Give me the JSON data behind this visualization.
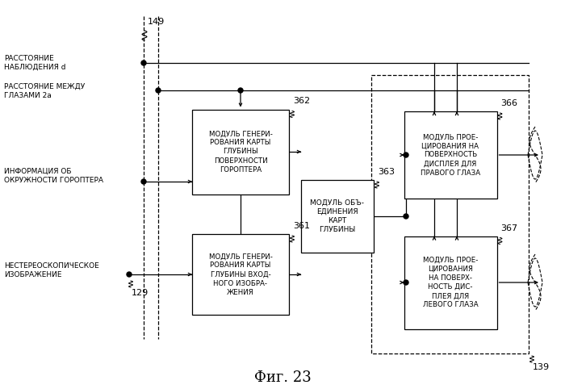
{
  "fig_label": "Фиг. 23",
  "background_color": "#ffffff",
  "label_149": "149",
  "label_362": "362",
  "label_361": "361",
  "label_363": "363",
  "label_366": "366",
  "label_367": "367",
  "label_129": "129",
  "label_139": "139",
  "text_dist_obs": "РАССТОЯНИЕ\nНАБЛЮДЕНИЯ d",
  "text_dist_eyes": "РАССТОЯНИЕ МЕЖДУ\nГЛАЗАМИ 2a",
  "text_info": "ИНФОРМАЦИЯ ОБ\nОКРУЖНОСТИ ГОРОПТЕРА",
  "text_nonstere": "НЕСТЕРЕОСКОПИЧЕСКОЕ\nИЗОБРАЖЕНИЕ",
  "box362_text": "МОДУЛЬ ГЕНЕРИ-\nРОВАНИЯ КАРТЫ\nГЛУБИНЫ\nПОВЕРХНОСТИ\nГОРОПТЕРА",
  "box361_text": "МОДУЛЬ ГЕНЕРИ-\nРОВАНИЯ КАРТЫ\nГЛУБИНЫ ВХОД-\nНОГО ИЗОБРА-\nЖЕНИЯ",
  "box363_text": "МОДУЛЬ ОБЪ-\nЕДИНЕНИЯ\nКАРТ\nГЛУБИНЫ",
  "box366_text": "МОДУЛЬ ПРОЕ-\nЦИРОВАНИЯ НА\nПОВЕРХНОСТЬ\nДИСПЛЕЯ ДЛЯ\nПРАВОГО ГЛАЗА",
  "box367_text": "МОДУЛЬ ПРОЕ-\nЦИРОВАНИЯ\nНА ПОВЕРХ-\nНОСТЬ ДИС-\nПЛЕЯ ДЛЯ\nЛЕВОГО ГЛАЗА"
}
